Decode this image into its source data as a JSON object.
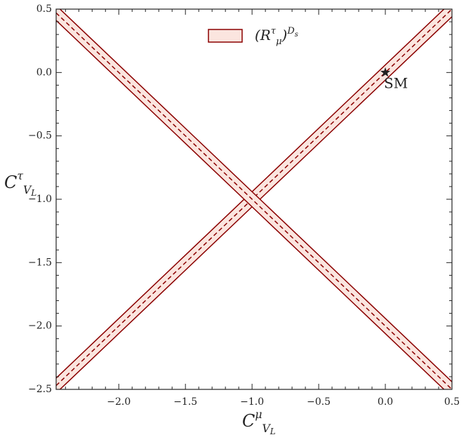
{
  "chart_data": {
    "type": "band",
    "xlim": [
      -2.47,
      0.5
    ],
    "ylim": [
      -2.5,
      0.5
    ],
    "xticks": [
      {
        "value": -2.0,
        "label": "−2.0"
      },
      {
        "value": -1.5,
        "label": "−1.5"
      },
      {
        "value": -1.0,
        "label": "−1.0"
      },
      {
        "value": -0.5,
        "label": "−0.5"
      },
      {
        "value": 0.0,
        "label": "0.0"
      },
      {
        "value": 0.5,
        "label": "0.5"
      }
    ],
    "yticks": [
      {
        "value": 0.5,
        "label": "0.5"
      },
      {
        "value": 0.0,
        "label": "0.0"
      },
      {
        "value": -0.5,
        "label": "−0.5"
      },
      {
        "value": -1.0,
        "label": "−1.0"
      },
      {
        "value": -1.5,
        "label": "−1.5"
      },
      {
        "value": -2.0,
        "label": "−2.0"
      },
      {
        "value": -2.5,
        "label": "−2.5"
      }
    ],
    "minor_ticks": true,
    "tick_direction": "in",
    "xlabel": [
      {
        "text": "C",
        "pos": "base"
      },
      {
        "text": "μ",
        "pos": "sup"
      },
      {
        "text": "V",
        "pos": "sub"
      },
      {
        "text": "L",
        "pos": "subsub"
      }
    ],
    "ylabel": [
      {
        "text": "C",
        "pos": "base"
      },
      {
        "text": "τ",
        "pos": "sup"
      },
      {
        "text": "V",
        "pos": "sub"
      },
      {
        "text": "L",
        "pos": "subsub"
      }
    ],
    "legend": "upper center",
    "series": [
      {
        "name": [
          {
            "text": "(R",
            "pos": "base"
          },
          {
            "text": "τ",
            "pos": "sup"
          },
          {
            "text": "μ",
            "pos": "sub"
          },
          {
            "text": ")",
            "pos": "base"
          },
          {
            "text": "D",
            "pos": "sup"
          },
          {
            "text": "s",
            "pos": "supsub"
          }
        ],
        "color": "#8b0000",
        "fill": "#fbe5df",
        "x": [
          -2.47,
          0.5
        ],
        "branches": [
          {
            "low": [
              -2.529,
              0.44
            ],
            "high": [
              -2.411,
              0.56
            ],
            "center": [
              -2.47,
              0.5
            ]
          },
          {
            "low": [
              0.411,
              -2.56
            ],
            "high": [
              0.529,
              -2.44
            ],
            "center": [
              0.47,
              -2.5
            ]
          }
        ]
      }
    ],
    "points": [
      {
        "x": 0.0,
        "y": 0.0,
        "label": "SM",
        "marker": "star",
        "color": "#222222"
      }
    ]
  }
}
